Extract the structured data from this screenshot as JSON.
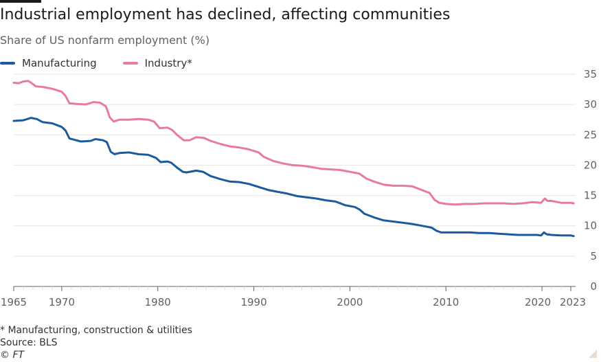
{
  "title": "Industrial employment has declined, affecting communities",
  "subtitle": "Share of US nonfarm employment (%)",
  "footnote": "* Manufacturing, construction & utilities",
  "source": "Source: BLS",
  "credit": "© FT",
  "colors": {
    "manufacturing": "#1a5a9e",
    "industry": "#e879a4",
    "grid": "#e8e4e0",
    "axis": "#66605c"
  },
  "chart_data": {
    "type": "line",
    "title": "Industrial employment has declined, affecting communities",
    "ylabel": "Share of US nonfarm employment (%)",
    "xlim": [
      1965,
      2023.5
    ],
    "ylim": [
      0,
      35
    ],
    "y_ticks": [
      0,
      5,
      10,
      15,
      20,
      25,
      30,
      35
    ],
    "x_ticks": [
      {
        "value": 1965,
        "label": "1965"
      },
      {
        "value": 1970,
        "label": "1970"
      },
      {
        "value": 1980,
        "label": "1980"
      },
      {
        "value": 1990,
        "label": "1990"
      },
      {
        "value": 2000,
        "label": "2000"
      },
      {
        "value": 2010,
        "label": "2010"
      },
      {
        "value": 2020,
        "label": "2020"
      },
      {
        "value": 2023,
        "label": "2023"
      }
    ],
    "series": [
      {
        "name": "Manufacturing",
        "points": [
          [
            1965.0,
            27.3
          ],
          [
            1966.0,
            27.4
          ],
          [
            1966.8,
            27.8
          ],
          [
            1967.4,
            27.6
          ],
          [
            1968.0,
            27.1
          ],
          [
            1969.0,
            26.9
          ],
          [
            1970.0,
            26.3
          ],
          [
            1970.4,
            25.7
          ],
          [
            1970.8,
            24.4
          ],
          [
            1971.5,
            24.1
          ],
          [
            1972.0,
            23.9
          ],
          [
            1973.0,
            24.0
          ],
          [
            1973.5,
            24.3
          ],
          [
            1974.3,
            24.1
          ],
          [
            1974.7,
            23.8
          ],
          [
            1975.1,
            22.2
          ],
          [
            1975.5,
            21.8
          ],
          [
            1976.0,
            22.0
          ],
          [
            1977.0,
            22.1
          ],
          [
            1978.0,
            21.8
          ],
          [
            1979.0,
            21.7
          ],
          [
            1979.8,
            21.2
          ],
          [
            1980.3,
            20.5
          ],
          [
            1981.0,
            20.6
          ],
          [
            1981.4,
            20.4
          ],
          [
            1982.0,
            19.6
          ],
          [
            1982.6,
            18.9
          ],
          [
            1983.0,
            18.8
          ],
          [
            1984.0,
            19.1
          ],
          [
            1984.7,
            18.9
          ],
          [
            1985.5,
            18.2
          ],
          [
            1986.5,
            17.7
          ],
          [
            1987.5,
            17.3
          ],
          [
            1988.5,
            17.2
          ],
          [
            1989.5,
            16.9
          ],
          [
            1990.5,
            16.4
          ],
          [
            1991.5,
            15.9
          ],
          [
            1992.5,
            15.6
          ],
          [
            1993.5,
            15.3
          ],
          [
            1994.5,
            14.9
          ],
          [
            1995.5,
            14.7
          ],
          [
            1996.5,
            14.5
          ],
          [
            1997.5,
            14.2
          ],
          [
            1998.5,
            14.0
          ],
          [
            1999.5,
            13.4
          ],
          [
            2000.5,
            13.1
          ],
          [
            2001.0,
            12.7
          ],
          [
            2001.5,
            12.0
          ],
          [
            2002.5,
            11.4
          ],
          [
            2003.5,
            10.9
          ],
          [
            2004.5,
            10.7
          ],
          [
            2005.5,
            10.5
          ],
          [
            2006.5,
            10.3
          ],
          [
            2007.5,
            10.0
          ],
          [
            2008.5,
            9.7
          ],
          [
            2009.0,
            9.2
          ],
          [
            2009.5,
            8.9
          ],
          [
            2010.5,
            8.9
          ],
          [
            2011.5,
            8.9
          ],
          [
            2012.5,
            8.9
          ],
          [
            2013.5,
            8.8
          ],
          [
            2014.5,
            8.8
          ],
          [
            2015.5,
            8.7
          ],
          [
            2016.5,
            8.6
          ],
          [
            2017.5,
            8.5
          ],
          [
            2018.5,
            8.5
          ],
          [
            2019.5,
            8.5
          ],
          [
            2019.9,
            8.4
          ],
          [
            2020.2,
            8.9
          ],
          [
            2020.5,
            8.6
          ],
          [
            2021.0,
            8.5
          ],
          [
            2022.0,
            8.4
          ],
          [
            2023.0,
            8.4
          ],
          [
            2023.3,
            8.3
          ]
        ]
      },
      {
        "name": "Industry*",
        "points": [
          [
            1965.0,
            33.6
          ],
          [
            1965.5,
            33.5
          ],
          [
            1966.0,
            33.8
          ],
          [
            1966.5,
            33.9
          ],
          [
            1966.8,
            33.6
          ],
          [
            1967.3,
            33.0
          ],
          [
            1968.0,
            32.9
          ],
          [
            1969.0,
            32.6
          ],
          [
            1970.0,
            32.1
          ],
          [
            1970.4,
            31.4
          ],
          [
            1970.8,
            30.2
          ],
          [
            1971.5,
            30.1
          ],
          [
            1972.5,
            30.0
          ],
          [
            1973.3,
            30.4
          ],
          [
            1974.0,
            30.3
          ],
          [
            1974.6,
            29.7
          ],
          [
            1975.0,
            27.9
          ],
          [
            1975.4,
            27.2
          ],
          [
            1976.0,
            27.5
          ],
          [
            1977.0,
            27.5
          ],
          [
            1978.0,
            27.6
          ],
          [
            1979.0,
            27.5
          ],
          [
            1979.6,
            27.2
          ],
          [
            1980.2,
            26.1
          ],
          [
            1981.0,
            26.2
          ],
          [
            1981.5,
            25.8
          ],
          [
            1982.0,
            25.0
          ],
          [
            1982.7,
            24.1
          ],
          [
            1983.3,
            24.1
          ],
          [
            1984.0,
            24.6
          ],
          [
            1984.8,
            24.5
          ],
          [
            1985.5,
            24.0
          ],
          [
            1986.5,
            23.5
          ],
          [
            1987.5,
            23.1
          ],
          [
            1988.5,
            22.9
          ],
          [
            1989.5,
            22.6
          ],
          [
            1990.5,
            22.1
          ],
          [
            1991.0,
            21.4
          ],
          [
            1992.0,
            20.7
          ],
          [
            1993.0,
            20.3
          ],
          [
            1994.0,
            20.0
          ],
          [
            1995.0,
            19.9
          ],
          [
            1996.0,
            19.7
          ],
          [
            1997.0,
            19.4
          ],
          [
            1998.0,
            19.3
          ],
          [
            1999.0,
            19.2
          ],
          [
            2000.0,
            18.9
          ],
          [
            2001.0,
            18.6
          ],
          [
            2001.7,
            17.8
          ],
          [
            2002.5,
            17.3
          ],
          [
            2003.5,
            16.8
          ],
          [
            2004.5,
            16.6
          ],
          [
            2005.5,
            16.6
          ],
          [
            2006.5,
            16.5
          ],
          [
            2007.5,
            15.9
          ],
          [
            2008.3,
            15.4
          ],
          [
            2008.8,
            14.3
          ],
          [
            2009.3,
            13.8
          ],
          [
            2010.0,
            13.6
          ],
          [
            2011.0,
            13.5
          ],
          [
            2012.0,
            13.6
          ],
          [
            2013.0,
            13.6
          ],
          [
            2014.0,
            13.7
          ],
          [
            2015.0,
            13.7
          ],
          [
            2016.0,
            13.7
          ],
          [
            2017.0,
            13.6
          ],
          [
            2018.0,
            13.7
          ],
          [
            2019.0,
            13.9
          ],
          [
            2019.9,
            13.8
          ],
          [
            2020.3,
            14.5
          ],
          [
            2020.6,
            14.1
          ],
          [
            2021.0,
            14.1
          ],
          [
            2022.0,
            13.8
          ],
          [
            2023.0,
            13.8
          ],
          [
            2023.3,
            13.7
          ]
        ]
      }
    ]
  }
}
